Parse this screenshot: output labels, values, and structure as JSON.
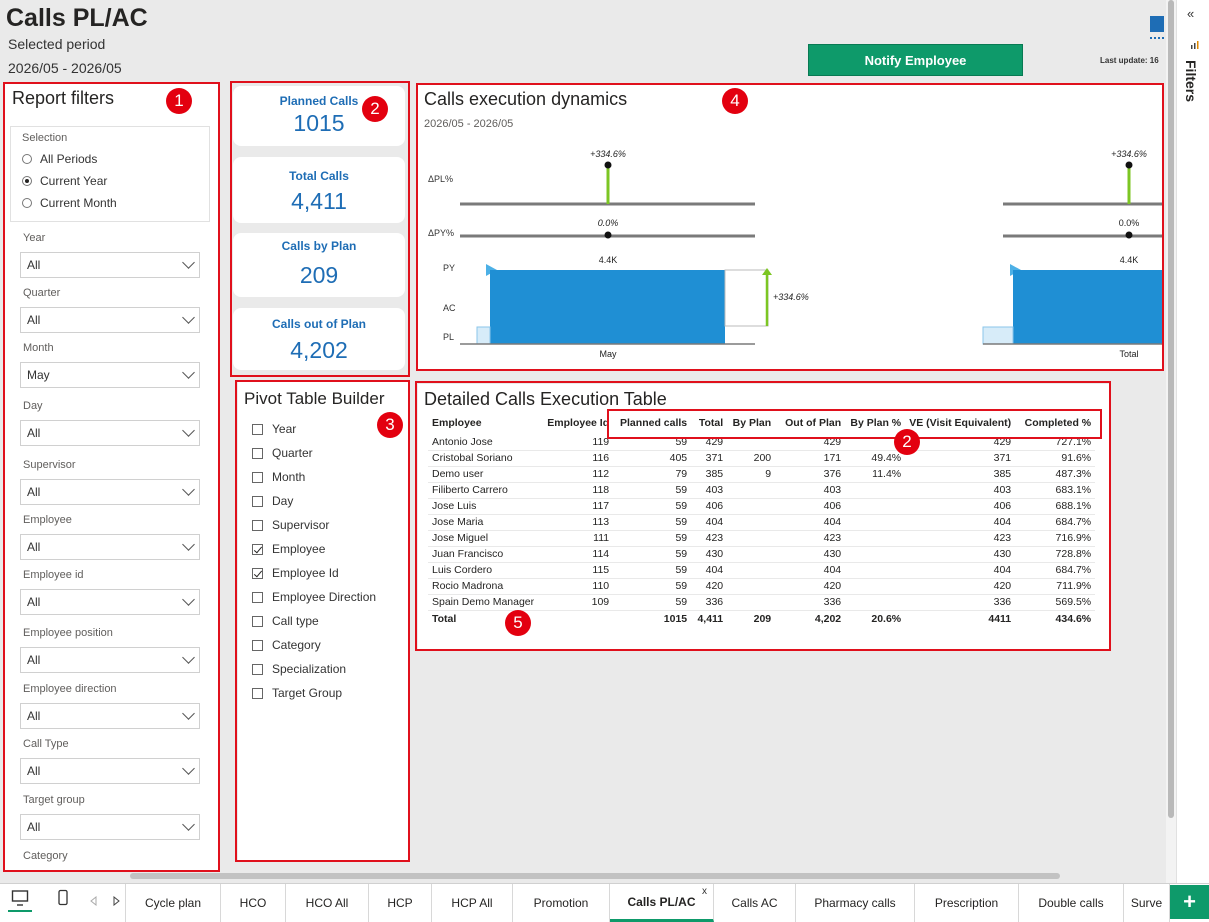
{
  "header": {
    "title": "Calls PL/AC",
    "period_label": "Selected period",
    "period_value": "2026/05 - 2026/05",
    "notify_button": "Notify Employee",
    "last_update": "Last update: 16"
  },
  "badges": [
    "1",
    "2",
    "3",
    "4",
    "2",
    "5"
  ],
  "filters": {
    "title": "Report filters",
    "selection_title": "Selection",
    "selection_options": [
      "All Periods",
      "Current Year",
      "Current Month"
    ],
    "selected_option": "Current Year",
    "fields": [
      {
        "label": "Year",
        "value": "All"
      },
      {
        "label": "Quarter",
        "value": "All"
      },
      {
        "label": "Month",
        "value": "May"
      },
      {
        "label": "Day",
        "value": "All"
      },
      {
        "label": "Supervisor",
        "value": "All"
      },
      {
        "label": "Employee",
        "value": "All"
      },
      {
        "label": "Employee id",
        "value": "All"
      },
      {
        "label": "Employee position",
        "value": "All"
      },
      {
        "label": "Employee direction",
        "value": "All"
      },
      {
        "label": "Call Type",
        "value": "All"
      },
      {
        "label": "Target group",
        "value": "All"
      },
      {
        "label": "Category",
        "value": ""
      }
    ]
  },
  "kpis": [
    {
      "label": "Planned Calls",
      "value": "1015"
    },
    {
      "label": "Total Calls",
      "value": "4,411"
    },
    {
      "label": "Calls by Plan",
      "value": "209"
    },
    {
      "label": "Calls out of Plan",
      "value": "4,202"
    }
  ],
  "pivot": {
    "title": "Pivot Table Builder",
    "items": [
      {
        "label": "Year",
        "checked": false
      },
      {
        "label": "Quarter",
        "checked": false
      },
      {
        "label": "Month",
        "checked": false
      },
      {
        "label": "Day",
        "checked": false
      },
      {
        "label": "Supervisor",
        "checked": false
      },
      {
        "label": "Employee",
        "checked": true
      },
      {
        "label": "Employee Id",
        "checked": true
      },
      {
        "label": "Employee Direction",
        "checked": false
      },
      {
        "label": "Call type",
        "checked": false
      },
      {
        "label": "Category",
        "checked": false
      },
      {
        "label": "Specialization",
        "checked": false
      },
      {
        "label": "Target Group",
        "checked": false
      }
    ]
  },
  "dynamics": {
    "title": "Calls execution dynamics",
    "subtitle": "2026/05 - 2026/05",
    "row_labels": {
      "dpl": "ΔPL%",
      "dpy": "ΔPY%",
      "py": "PY",
      "ac": "AC",
      "pl": "PL"
    },
    "may": {
      "category": "May",
      "dpl": "+334.6%",
      "dpy": "0.0%",
      "ac_label": "4.4K",
      "variance": "+334.6%"
    },
    "total": {
      "category": "Total",
      "dpl": "+334.6%",
      "dpy": "0.0%",
      "ac_label": "4.4K"
    },
    "colors": {
      "ac": "#1f8fd4",
      "positive": "#7cc623",
      "axis": "#7a7a7a"
    }
  },
  "table": {
    "title": "Detailed Calls Execution Table",
    "columns": [
      "Employee",
      "Employee Id",
      "Planned calls",
      "Total",
      "By Plan",
      "Out of Plan",
      "By Plan %",
      "VE (Visit Equivalent)",
      "Completed %"
    ],
    "rows": [
      [
        "Antonio Jose",
        "119",
        "59",
        "429",
        "",
        "429",
        "",
        "429",
        "727.1%"
      ],
      [
        "Cristobal Soriano",
        "116",
        "405",
        "371",
        "200",
        "171",
        "49.4%",
        "371",
        "91.6%"
      ],
      [
        "Demo user",
        "112",
        "79",
        "385",
        "9",
        "376",
        "11.4%",
        "385",
        "487.3%"
      ],
      [
        "Filiberto Carrero",
        "118",
        "59",
        "403",
        "",
        "403",
        "",
        "403",
        "683.1%"
      ],
      [
        "Jose Luis",
        "117",
        "59",
        "406",
        "",
        "406",
        "",
        "406",
        "688.1%"
      ],
      [
        "Jose Maria",
        "113",
        "59",
        "404",
        "",
        "404",
        "",
        "404",
        "684.7%"
      ],
      [
        "Jose Miguel",
        "111",
        "59",
        "423",
        "",
        "423",
        "",
        "423",
        "716.9%"
      ],
      [
        "Juan Francisco",
        "114",
        "59",
        "430",
        "",
        "430",
        "",
        "430",
        "728.8%"
      ],
      [
        "Luis Cordero",
        "115",
        "59",
        "404",
        "",
        "404",
        "",
        "404",
        "684.7%"
      ],
      [
        "Rocio Madrona",
        "110",
        "59",
        "420",
        "",
        "420",
        "",
        "420",
        "711.9%"
      ],
      [
        "Spain Demo Manager",
        "109",
        "59",
        "336",
        "",
        "336",
        "",
        "336",
        "569.5%"
      ]
    ],
    "total": [
      "Total",
      "",
      "1015",
      "4,411",
      "209",
      "4,202",
      "20.6%",
      "4411",
      "434.6%"
    ]
  },
  "rail": {
    "label": "Filters",
    "collapse_glyph": "«"
  },
  "tabs": [
    {
      "label": "Cycle plan",
      "active": false
    },
    {
      "label": "HCO",
      "active": false
    },
    {
      "label": "HCO All",
      "active": false
    },
    {
      "label": "HCP",
      "active": false
    },
    {
      "label": "HCP All",
      "active": false
    },
    {
      "label": "Promotion",
      "active": false
    },
    {
      "label": "Calls PL/AC",
      "active": true
    },
    {
      "label": "Calls AC",
      "active": false
    },
    {
      "label": "Pharmacy calls",
      "active": false
    },
    {
      "label": "Prescription",
      "active": false
    },
    {
      "label": "Double calls",
      "active": false
    },
    {
      "label": "Surve",
      "active": false
    }
  ],
  "tab_close_glyph": "x",
  "add_tab_glyph": "+"
}
